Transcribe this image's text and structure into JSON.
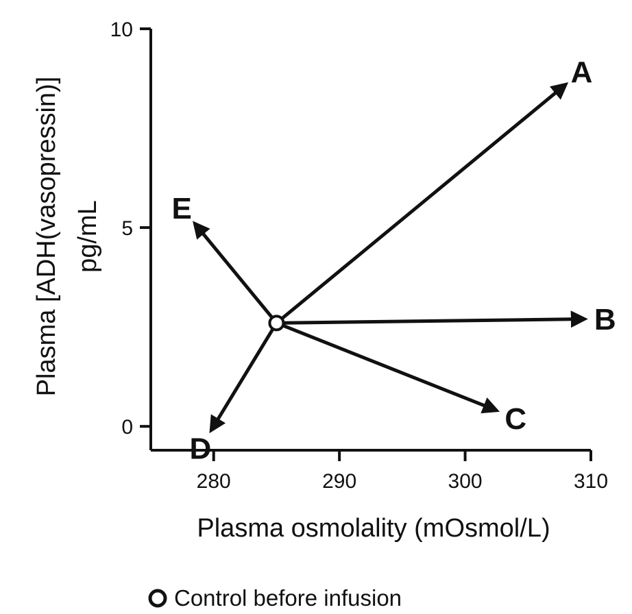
{
  "chart_data": {
    "type": "line",
    "xlabel": "Plasma osmolality (mOsmol/L)",
    "ylabel_line1": "Plasma [ADH(vasopressin)]",
    "ylabel_line2": "pg/mL",
    "xlim": [
      275,
      310
    ],
    "ylim": [
      -0.6,
      10
    ],
    "x_ticks": [
      280,
      290,
      300,
      310
    ],
    "y_ticks": [
      0,
      5,
      10
    ],
    "grid": false,
    "origin": {
      "x": 285,
      "y": 2.6
    },
    "series": [
      {
        "name": "A",
        "x": [
          285,
          308
        ],
        "y": [
          2.6,
          8.6
        ]
      },
      {
        "name": "B",
        "x": [
          285,
          309.5
        ],
        "y": [
          2.6,
          2.7
        ]
      },
      {
        "name": "C",
        "x": [
          285,
          302.5
        ],
        "y": [
          2.6,
          0.4
        ]
      },
      {
        "name": "D",
        "x": [
          285,
          279.8
        ],
        "y": [
          2.6,
          -0.1
        ]
      },
      {
        "name": "E",
        "x": [
          285,
          278.5
        ],
        "y": [
          2.6,
          5.1
        ]
      }
    ],
    "legend": {
      "label": "Control before infusion",
      "placement": "bottom"
    }
  }
}
